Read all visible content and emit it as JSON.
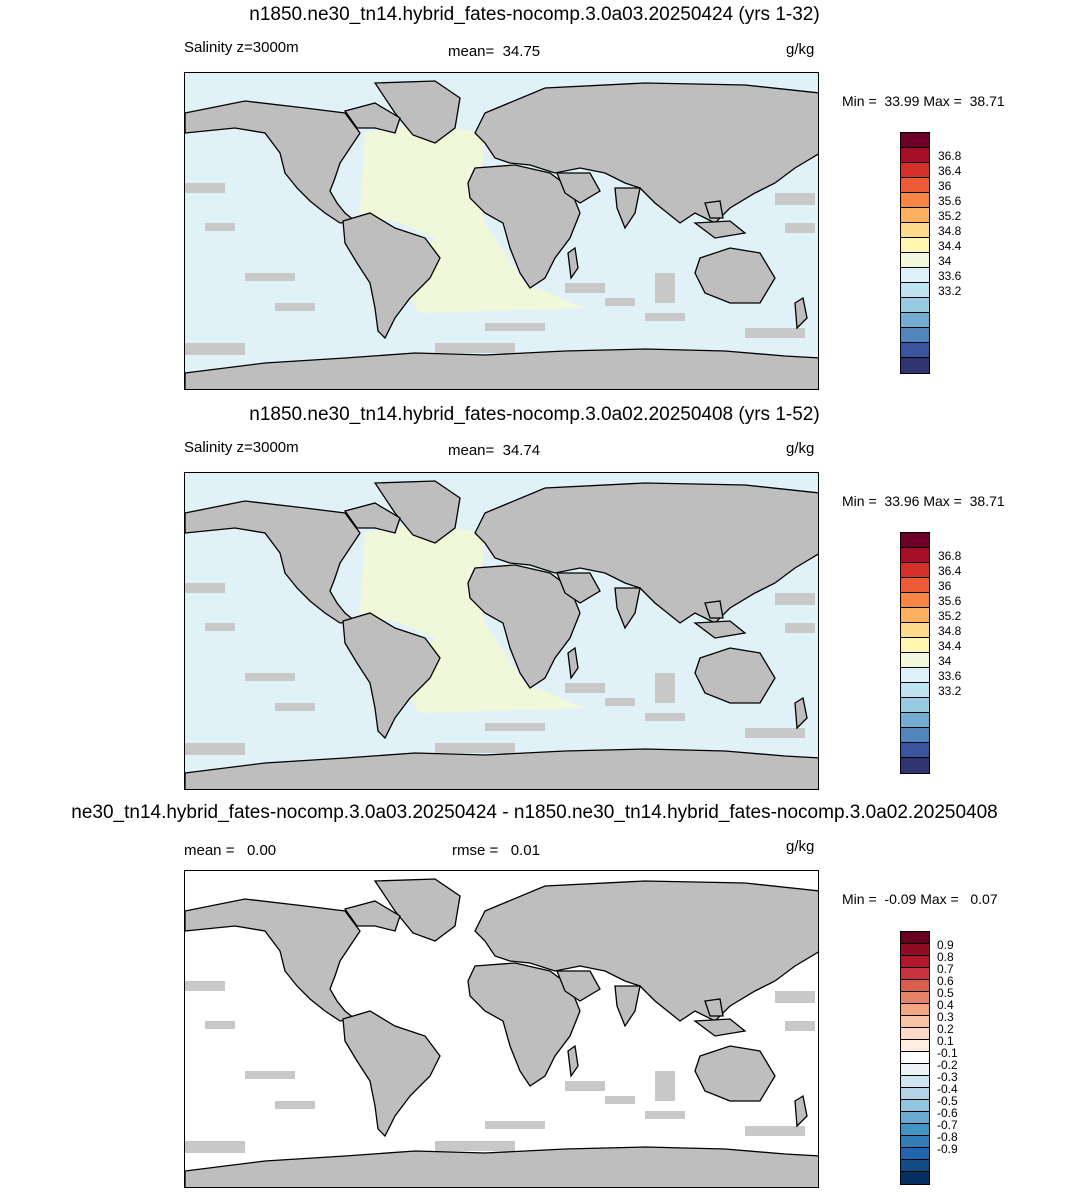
{
  "panels": [
    {
      "title": "n1850.ne30_tn14.hybrid_fates-nocomp.3.0a03.20250424 (yrs 1-32)",
      "left_label": "Salinity z=3000m",
      "center_label": "mean=  34.75",
      "units": "g/kg",
      "minmax": "Min =  33.99 Max =  38.71",
      "ocean_fill": "#e1f1f8",
      "atlantic_fill": "#f1f8da",
      "colorbar": {
        "colors": [
          "#6d0026",
          "#a50f27",
          "#d33027",
          "#ee5b37",
          "#f78748",
          "#fbb062",
          "#fdd98c",
          "#fff6b0",
          "#f2f9dc",
          "#dff1f9",
          "#bde4f0",
          "#96cbe1",
          "#74acd2",
          "#5185bd",
          "#3a55a0",
          "#303572"
        ],
        "ticks": [
          "36.8",
          "36.4",
          "36",
          "35.6",
          "35.2",
          "34.8",
          "34.4",
          "34",
          "33.6",
          "33.2"
        ]
      }
    },
    {
      "title": "n1850.ne30_tn14.hybrid_fates-nocomp.3.0a02.20250408 (yrs 1-52)",
      "left_label": "Salinity z=3000m",
      "center_label": "mean=  34.74",
      "units": "g/kg",
      "minmax": "Min =  33.96 Max =  38.71",
      "ocean_fill": "#e1f1f8",
      "atlantic_fill": "#f1f8da",
      "colorbar": {
        "colors": [
          "#6d0026",
          "#a50f27",
          "#d33027",
          "#ee5b37",
          "#f78748",
          "#fbb062",
          "#fdd98c",
          "#fff6b0",
          "#f2f9dc",
          "#dff1f9",
          "#bde4f0",
          "#96cbe1",
          "#74acd2",
          "#5185bd",
          "#3a55a0",
          "#303572"
        ],
        "ticks": [
          "36.8",
          "36.4",
          "36",
          "35.6",
          "35.2",
          "34.8",
          "34.4",
          "34",
          "33.6",
          "33.2"
        ]
      }
    },
    {
      "title": "ne30_tn14.hybrid_fates-nocomp.3.0a03.20250424 - n1850.ne30_tn14.hybrid_fates-nocomp.3.0a02.20250408",
      "left_label": "mean =   0.00",
      "center_label": "rmse =   0.01",
      "units": "g/kg",
      "minmax": "Min =  -0.09 Max =   0.07",
      "ocean_fill": "#ffffff",
      "atlantic_fill": "#ffffff",
      "colorbar": {
        "colors": [
          "#67001f",
          "#8f0c25",
          "#b2182b",
          "#c7343f",
          "#d6604d",
          "#e58368",
          "#f4a582",
          "#f9c3a5",
          "#fddbc7",
          "#fdeee4",
          "#ffffff",
          "#ecf4f8",
          "#d1e5f0",
          "#b3d4e7",
          "#92c5de",
          "#6aacd0",
          "#4393c3",
          "#327cb7",
          "#2166ac",
          "#134b87",
          "#053061"
        ],
        "ticks": [
          "0.9",
          "0.8",
          "0.7",
          "0.6",
          "0.5",
          "0.4",
          "0.3",
          "0.2",
          "0.1",
          "-0.1",
          "-0.2",
          "-0.3",
          "-0.4",
          "-0.5",
          "-0.6",
          "-0.7",
          "-0.8",
          "-0.9"
        ]
      }
    }
  ]
}
